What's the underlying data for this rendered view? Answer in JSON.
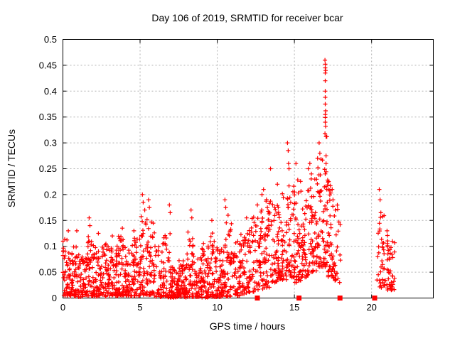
{
  "chart_data": {
    "type": "scatter",
    "title": "Day 106 of 2019, SRMTID for receiver bcar",
    "xlabel": "GPS time / hours",
    "ylabel": "SRMTID / TECUs",
    "xlim": [
      0,
      24
    ],
    "ylim": [
      0,
      0.5
    ],
    "xticks": [
      0,
      5,
      10,
      15,
      20
    ],
    "xtick_labels": [
      "0",
      "5",
      "10",
      "15",
      "20"
    ],
    "yticks": [
      0,
      0.05,
      0.1,
      0.15,
      0.2,
      0.25,
      0.3,
      0.35,
      0.4,
      0.45,
      0.5
    ],
    "ytick_labels": [
      "0",
      "0.05",
      "0.1",
      "0.15",
      "0.2",
      "0.25",
      "0.3",
      "0.35",
      "0.4",
      "0.45",
      "0.5"
    ],
    "grid": {
      "shown": true,
      "style": "dashed",
      "color": "#b0b0b0"
    },
    "legend": "none",
    "background_color": "#ffffff",
    "axis_color": "#000000",
    "series": [
      {
        "name": "srmtid-scatter",
        "marker": "plus",
        "color": "#ff0000",
        "marker_px": 7,
        "points_encoding": "density_bins_plus_notable_points",
        "density_bins_columns": [
          "x_start_hr",
          "x_end_hr",
          "count",
          "y_min_TECU",
          "y_max_TECU"
        ],
        "density_bins": [
          [
            0.0,
            0.5,
            55,
            0.005,
            0.115
          ],
          [
            0.5,
            1.0,
            50,
            0.003,
            0.1
          ],
          [
            1.0,
            1.5,
            48,
            0.002,
            0.085
          ],
          [
            1.5,
            2.0,
            52,
            0.004,
            0.12
          ],
          [
            2.0,
            2.5,
            52,
            0.003,
            0.1
          ],
          [
            2.5,
            3.0,
            48,
            0.003,
            0.11
          ],
          [
            3.0,
            3.5,
            48,
            0.004,
            0.1
          ],
          [
            3.5,
            4.0,
            52,
            0.004,
            0.12
          ],
          [
            4.0,
            4.5,
            48,
            0.003,
            0.1
          ],
          [
            4.5,
            5.0,
            48,
            0.004,
            0.12
          ],
          [
            5.0,
            5.5,
            52,
            0.004,
            0.16
          ],
          [
            5.5,
            6.0,
            42,
            0.003,
            0.15
          ],
          [
            6.0,
            6.5,
            34,
            0.002,
            0.11
          ],
          [
            6.5,
            7.0,
            42,
            0.001,
            0.13
          ],
          [
            7.0,
            7.5,
            58,
            0.001,
            0.06
          ],
          [
            7.5,
            8.0,
            58,
            0.001,
            0.075
          ],
          [
            8.0,
            8.5,
            46,
            0.002,
            0.13
          ],
          [
            8.5,
            9.0,
            44,
            0.002,
            0.08
          ],
          [
            9.0,
            9.5,
            48,
            0.001,
            0.11
          ],
          [
            9.5,
            10.0,
            46,
            0.002,
            0.13
          ],
          [
            10.0,
            10.5,
            52,
            0.002,
            0.095
          ],
          [
            10.5,
            11.0,
            46,
            0.003,
            0.15
          ],
          [
            11.0,
            11.5,
            44,
            0.004,
            0.11
          ],
          [
            11.5,
            12.0,
            44,
            0.005,
            0.13
          ],
          [
            12.0,
            12.5,
            44,
            0.01,
            0.16
          ],
          [
            12.5,
            13.0,
            44,
            0.015,
            0.185
          ],
          [
            13.0,
            13.5,
            48,
            0.02,
            0.2
          ],
          [
            13.5,
            14.0,
            48,
            0.03,
            0.19
          ],
          [
            14.0,
            14.5,
            48,
            0.035,
            0.21
          ],
          [
            14.5,
            15.0,
            48,
            0.04,
            0.23
          ],
          [
            15.0,
            15.5,
            48,
            0.03,
            0.23
          ],
          [
            15.5,
            16.0,
            48,
            0.04,
            0.21
          ],
          [
            16.0,
            16.5,
            52,
            0.05,
            0.24
          ],
          [
            16.5,
            17.0,
            52,
            0.06,
            0.28
          ],
          [
            17.0,
            17.5,
            52,
            0.04,
            0.25
          ],
          [
            17.5,
            18.0,
            26,
            0.03,
            0.2
          ],
          [
            20.35,
            20.9,
            38,
            0.02,
            0.165
          ],
          [
            20.9,
            21.5,
            44,
            0.015,
            0.125
          ]
        ],
        "notable_points": [
          [
            0.35,
            0.13
          ],
          [
            0.9,
            0.13
          ],
          [
            1.7,
            0.155
          ],
          [
            1.75,
            0.14
          ],
          [
            2.3,
            0.125
          ],
          [
            3.2,
            0.12
          ],
          [
            3.85,
            0.135
          ],
          [
            4.6,
            0.13
          ],
          [
            5.15,
            0.2
          ],
          [
            5.2,
            0.185
          ],
          [
            5.3,
            0.17
          ],
          [
            5.55,
            0.19
          ],
          [
            5.6,
            0.175
          ],
          [
            6.9,
            0.18
          ],
          [
            6.95,
            0.165
          ],
          [
            8.3,
            0.17
          ],
          [
            8.35,
            0.155
          ],
          [
            9.65,
            0.15
          ],
          [
            10.5,
            0.19
          ],
          [
            10.55,
            0.175
          ],
          [
            10.7,
            0.16
          ],
          [
            11.9,
            0.155
          ],
          [
            12.6,
            0.18
          ],
          [
            12.9,
            0.2
          ],
          [
            13.0,
            0.21
          ],
          [
            13.45,
            0.25
          ],
          [
            13.9,
            0.22
          ],
          [
            14.55,
            0.3
          ],
          [
            14.6,
            0.285
          ],
          [
            14.62,
            0.26
          ],
          [
            14.65,
            0.25
          ],
          [
            15.1,
            0.26
          ],
          [
            15.9,
            0.25
          ],
          [
            16.0,
            0.26
          ],
          [
            16.1,
            0.24
          ],
          [
            16.5,
            0.27
          ],
          [
            16.6,
            0.3
          ],
          [
            16.65,
            0.28
          ],
          [
            16.98,
            0.46
          ],
          [
            17.0,
            0.452
          ],
          [
            17.0,
            0.445
          ],
          [
            17.02,
            0.44
          ],
          [
            17.0,
            0.435
          ],
          [
            17.0,
            0.42
          ],
          [
            17.0,
            0.4
          ],
          [
            17.0,
            0.388
          ],
          [
            17.0,
            0.375
          ],
          [
            17.02,
            0.362
          ],
          [
            17.0,
            0.355
          ],
          [
            17.0,
            0.349
          ],
          [
            17.0,
            0.34
          ],
          [
            17.02,
            0.332
          ],
          [
            16.98,
            0.318
          ],
          [
            17.05,
            0.312
          ],
          [
            17.1,
            0.312
          ],
          [
            17.05,
            0.275
          ],
          [
            17.05,
            0.26
          ],
          [
            17.0,
            0.24
          ],
          [
            17.1,
            0.21
          ],
          [
            17.45,
            0.21
          ],
          [
            17.5,
            0.19
          ],
          [
            20.5,
            0.21
          ],
          [
            20.55,
            0.19
          ],
          [
            20.6,
            0.165
          ],
          [
            21.0,
            0.13
          ]
        ],
        "random_seed": 2019106
      },
      {
        "name": "axis-flag-squares",
        "marker": "filled-square",
        "color": "#ff0000",
        "marker_px": 7,
        "y": 0,
        "x": [
          12.6,
          15.3,
          17.95,
          20.2
        ]
      }
    ]
  }
}
